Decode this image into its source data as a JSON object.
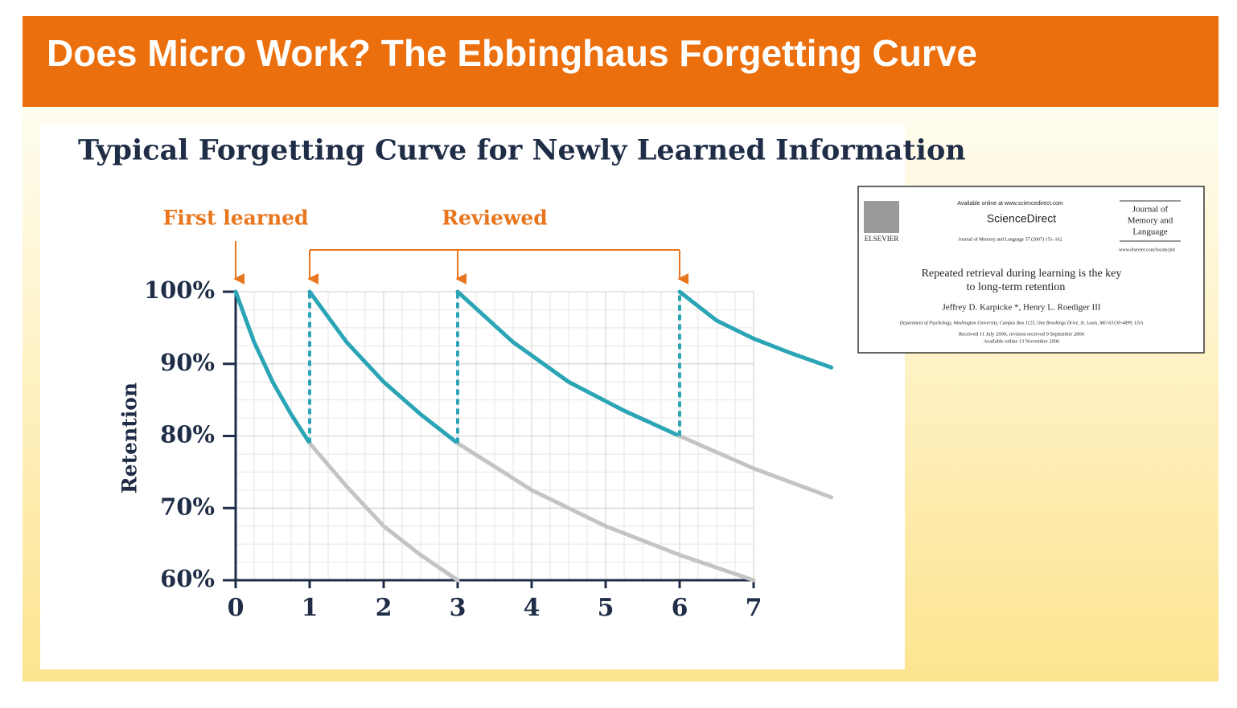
{
  "slide": {
    "title": "Does Micro Work? The Ebbinghaus Forgetting Curve"
  },
  "chart_data": {
    "type": "line",
    "title": "Typical Forgetting Curve for Newly Learned Information",
    "ylabel": "Retention",
    "xlim": [
      0,
      7
    ],
    "xticks": [
      0,
      1,
      2,
      3,
      4,
      5,
      6,
      7
    ],
    "ylim": [
      60,
      100
    ],
    "yticks": [
      {
        "value": 60,
        "label": "60%"
      },
      {
        "value": 70,
        "label": "70%"
      },
      {
        "value": 80,
        "label": "80%"
      },
      {
        "value": 90,
        "label": "90%"
      },
      {
        "value": 100,
        "label": "100%"
      }
    ],
    "grid": true,
    "annotations": [
      {
        "text": "First learned",
        "x": [
          0
        ]
      },
      {
        "text": "Reviewed",
        "x": [
          1,
          3,
          6
        ]
      }
    ],
    "series": [
      {
        "color": "#2ba5b6",
        "x": [
          0,
          0.25,
          0.5,
          0.75,
          1
        ],
        "values": [
          100,
          93,
          87.5,
          83,
          79
        ]
      },
      {
        "color": "#2ba5b6",
        "x": [
          1,
          1.5,
          2,
          2.5,
          3
        ],
        "values": [
          100,
          93,
          87.5,
          83,
          79
        ]
      },
      {
        "color": "#2ba5b6",
        "x": [
          3,
          3.75,
          4.5,
          5.25,
          6
        ],
        "values": [
          100,
          93,
          87.5,
          83.5,
          80
        ]
      },
      {
        "color": "#2ba5b6",
        "x": [
          6,
          6.5,
          7,
          7.5,
          8.05
        ],
        "values": [
          100,
          96,
          93.5,
          91.5,
          89.5
        ]
      },
      {
        "color": "#c4c4c4",
        "x": [
          1,
          1.5,
          2,
          2.5,
          3
        ],
        "values": [
          79,
          73,
          67.5,
          63.5,
          60
        ]
      },
      {
        "color": "#c4c4c4",
        "x": [
          3,
          4,
          5,
          6,
          7
        ],
        "values": [
          79,
          72.5,
          67.5,
          63.5,
          60
        ]
      },
      {
        "color": "#c4c4c4",
        "x": [
          6,
          7,
          8.05
        ],
        "values": [
          80,
          75.5,
          71.5
        ]
      },
      {
        "color": "#2ba5b6",
        "dashed": true,
        "x": [
          1,
          1
        ],
        "values": [
          79,
          100
        ]
      },
      {
        "color": "#2ba5b6",
        "dashed": true,
        "x": [
          3,
          3
        ],
        "values": [
          79,
          100
        ]
      },
      {
        "color": "#2ba5b6",
        "dashed": true,
        "x": [
          6,
          6
        ],
        "values": [
          80,
          100
        ]
      }
    ]
  },
  "paper": {
    "available": "Available online at www.sciencedirect.com",
    "brand": "ScienceDirect",
    "publisher": "ELSEVIER",
    "citation": "Journal of Memory and Language 57 (2007) 151–162",
    "journal": [
      "Journal of",
      "Memory and",
      "Language"
    ],
    "url": "www.elsevier.com/locate/jml",
    "title": [
      "Repeated retrieval during learning is the key",
      "to long-term retention"
    ],
    "authors": "Jeffrey D. Karpicke *, Henry L. Roediger III",
    "affiliation": "Department of Psychology, Washington University, Campus Box 1125, One Brookings Drive, St. Louis, MO 63130-4899, USA",
    "received": "Received 11 July 2006; revision received 9 September 2006",
    "online": "Available online 13 November 2006"
  }
}
